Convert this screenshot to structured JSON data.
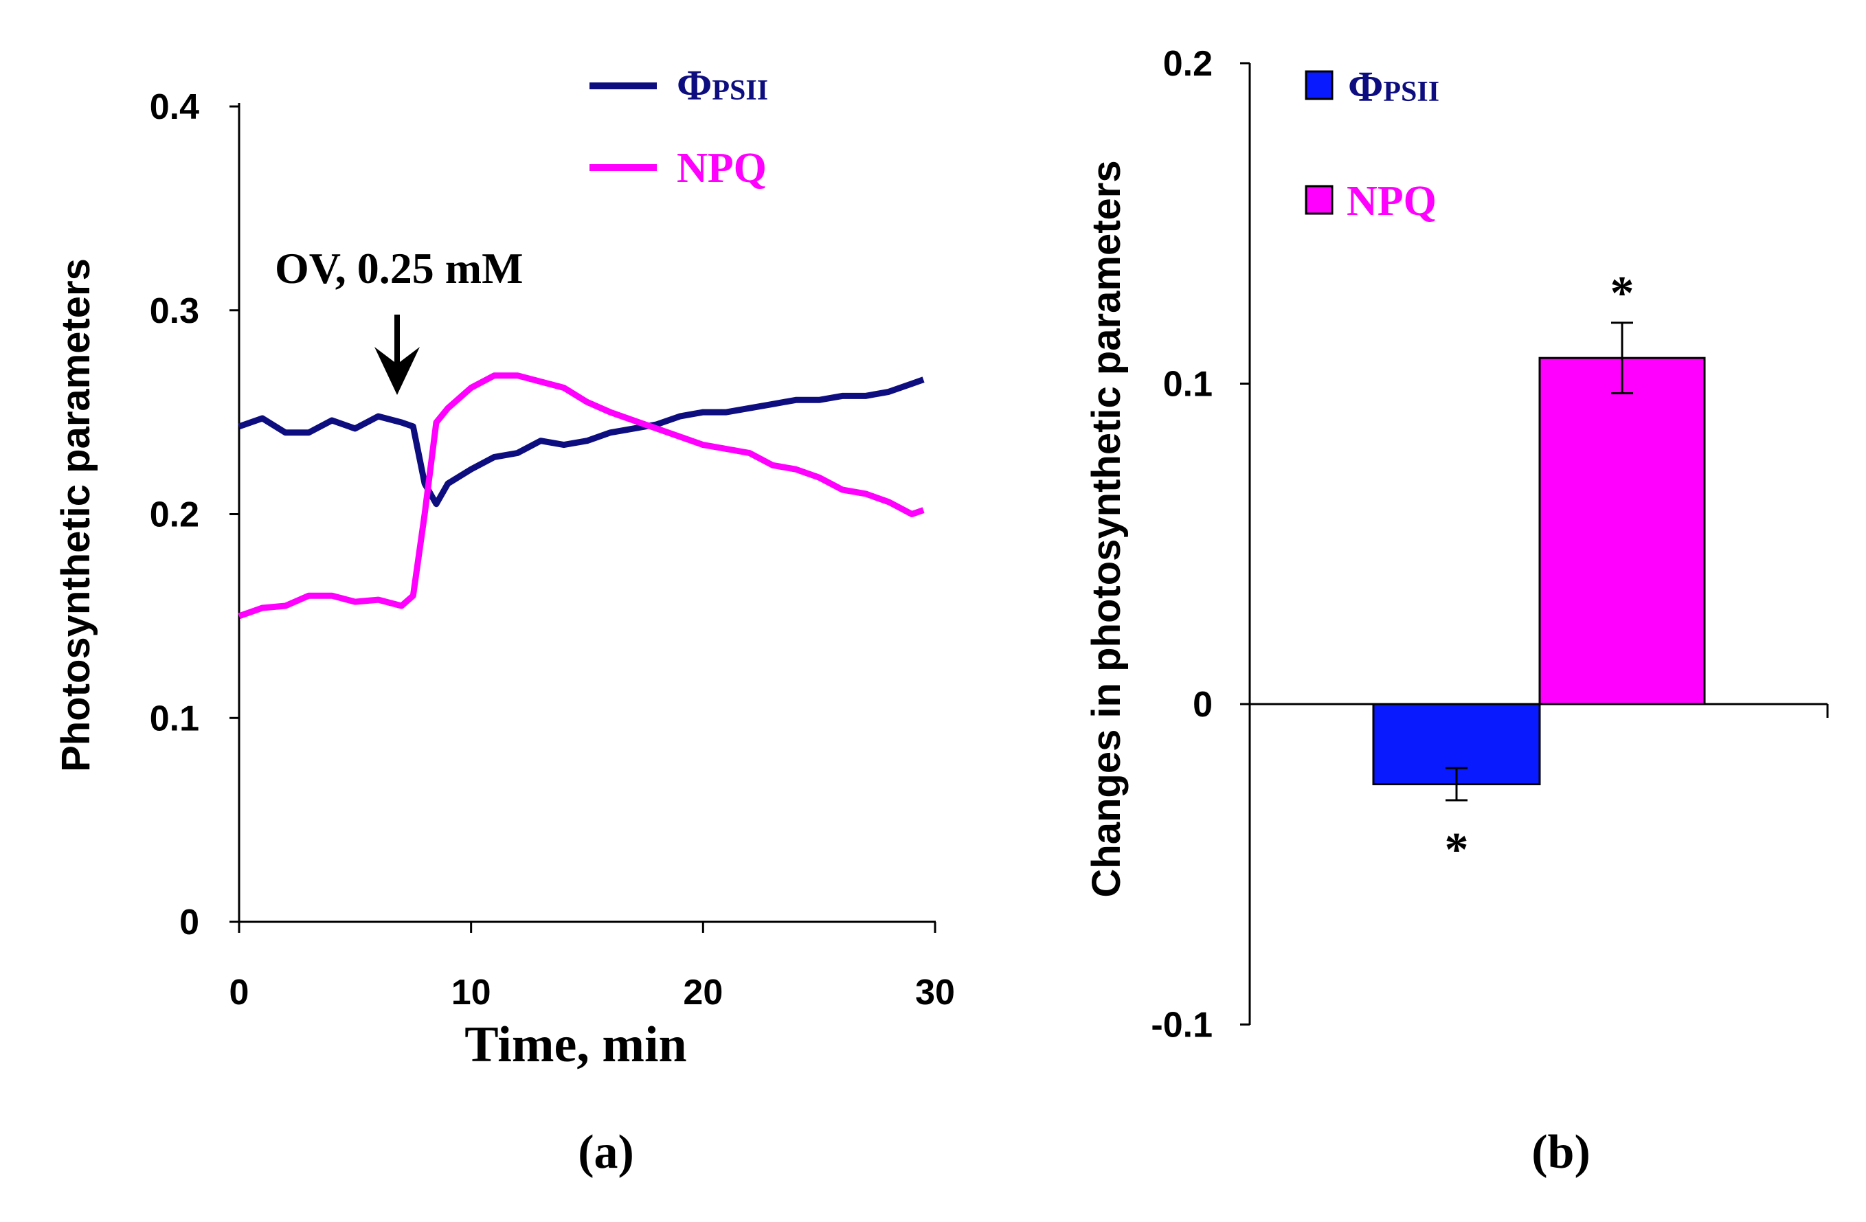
{
  "chart_data": [
    {
      "type": "line",
      "panel_label": "(a)",
      "xlabel": "Time, min",
      "ylabel": "Photosynthetic parameters",
      "xlim": [
        0,
        30
      ],
      "ylim": [
        0,
        0.4
      ],
      "xticks": [
        "0",
        "10",
        "20",
        "30"
      ],
      "yticks": [
        "0",
        "0.1",
        "0.2",
        "0.3",
        "0.4"
      ],
      "annotation": "OV, 0.25 mM",
      "annotation_x": 6.8,
      "legend": "top-right",
      "series": [
        {
          "name": "ΦPSII",
          "name_main": "Φ",
          "name_sub": "PSII",
          "color": "#0d0d80",
          "x": [
            0,
            1,
            2,
            3,
            4,
            5,
            6,
            7,
            7.5,
            8,
            8.5,
            9,
            10,
            11,
            12,
            13,
            14,
            15,
            16,
            17,
            18,
            19,
            20,
            21,
            22,
            23,
            24,
            25,
            26,
            27,
            28,
            29,
            29.5
          ],
          "y": [
            0.243,
            0.247,
            0.24,
            0.24,
            0.246,
            0.242,
            0.248,
            0.245,
            0.243,
            0.215,
            0.205,
            0.215,
            0.222,
            0.228,
            0.23,
            0.236,
            0.234,
            0.236,
            0.24,
            0.242,
            0.244,
            0.248,
            0.25,
            0.25,
            0.252,
            0.254,
            0.256,
            0.256,
            0.258,
            0.258,
            0.26,
            0.264,
            0.266
          ]
        },
        {
          "name": "NPQ",
          "color": "#ff00ff",
          "x": [
            0,
            1,
            2,
            3,
            4,
            5,
            6,
            7,
            7.5,
            8,
            8.5,
            9,
            10,
            11,
            12,
            13,
            14,
            15,
            16,
            17,
            18,
            19,
            20,
            21,
            22,
            23,
            24,
            25,
            26,
            27,
            28,
            29,
            29.5
          ],
          "y": [
            0.15,
            0.154,
            0.155,
            0.16,
            0.16,
            0.157,
            0.158,
            0.155,
            0.16,
            0.2,
            0.245,
            0.252,
            0.262,
            0.268,
            0.268,
            0.265,
            0.262,
            0.255,
            0.25,
            0.246,
            0.242,
            0.238,
            0.234,
            0.232,
            0.23,
            0.224,
            0.222,
            0.218,
            0.212,
            0.21,
            0.206,
            0.2,
            0.202
          ]
        }
      ]
    },
    {
      "type": "bar",
      "panel_label": "(b)",
      "ylabel": "Changes in photosynthetic parameters",
      "ylim": [
        -0.1,
        0.2
      ],
      "yticks": [
        "-0.1",
        "0",
        "0.1",
        "0.2"
      ],
      "legend": "top-left",
      "categories": [
        "ΦPSII",
        "NPQ"
      ],
      "series": [
        {
          "name": "ΦPSII",
          "name_main": "Φ",
          "name_sub": "PSII",
          "color": "#0a1aff",
          "value": -0.025,
          "error": 0.005,
          "significance": "*"
        },
        {
          "name": "NPQ",
          "color": "#ff00ff",
          "value": 0.108,
          "error": 0.011,
          "significance": "*"
        }
      ]
    }
  ]
}
